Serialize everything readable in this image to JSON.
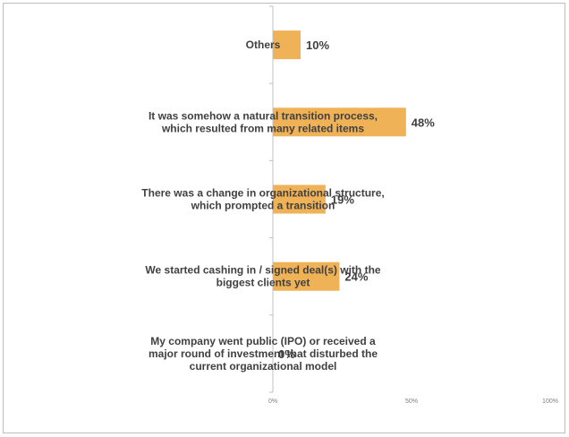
{
  "chart_data": {
    "type": "bar",
    "orientation": "horizontal",
    "categories": [
      [
        "Others"
      ],
      [
        "It was somehow a natural transition process,",
        "which resulted from many related items"
      ],
      [
        "There was a change in organizational structure,",
        "which prompted a transition"
      ],
      [
        "We started cashing in / signed deal(s) with the",
        "biggest clients yet"
      ],
      [
        "My company went public (IPO) or received a",
        "major round of investment that disturbed the",
        "current organizational model"
      ]
    ],
    "values": [
      10,
      48,
      19,
      24,
      0
    ],
    "value_labels": [
      "10%",
      "48%",
      "19%",
      "24%",
      "0%"
    ],
    "xlim": [
      0,
      100
    ],
    "x_ticks": [
      0,
      50,
      100
    ],
    "x_tick_labels": [
      "0%",
      "50%",
      "100%"
    ],
    "bar_color": "#f0b257",
    "axis_color": "#c0c0c0",
    "grid": false,
    "legend": "none"
  }
}
